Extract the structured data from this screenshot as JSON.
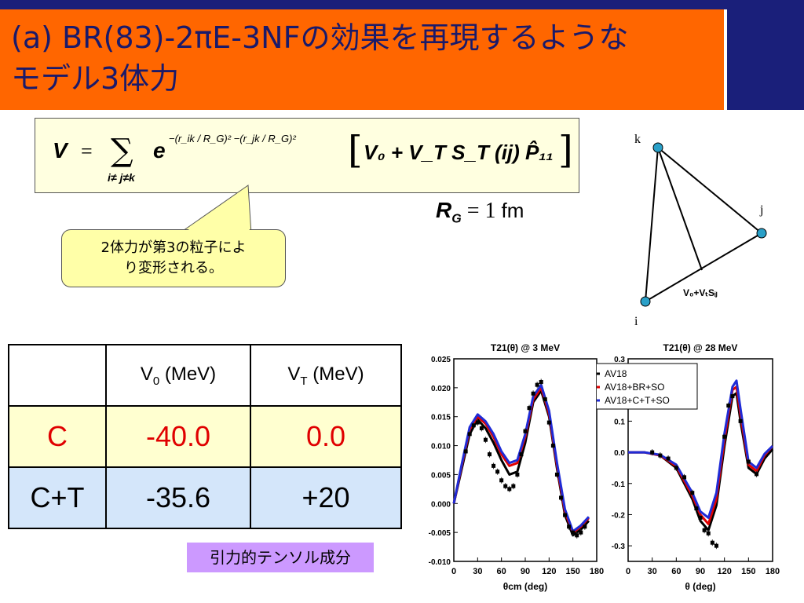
{
  "title": {
    "line1": "(a) BR(83)-2πE-3NFの効果を再現するような",
    "line2": "モデル3体力"
  },
  "formula": {
    "lhs": "V",
    "eq": "=",
    "sum_sub": "i≠ j≠k",
    "exp_base": "e",
    "exponent": "−(r_ik / R_G)² −(r_jk / R_G)²",
    "bracket_terms": "V₀ + V_T S_T (ij) P̂₁₁"
  },
  "rg_line": {
    "symbol": "R",
    "sub": "G",
    "eq": "= 1",
    "unit": "fm"
  },
  "callout": {
    "line1": "2体力が第3の粒子によ",
    "line2": "り変形される。"
  },
  "triangle": {
    "vertex_k": "k",
    "vertex_j": "j",
    "vertex_i": "i",
    "label": "V₀+VₜSᵢⱼ",
    "node_color": "#2aa0c8"
  },
  "table": {
    "headers": [
      "",
      "V0 (MeV)",
      "VT (MeV)"
    ],
    "rows": [
      {
        "name": "C",
        "v0": "-40.0",
        "vt": "0.0"
      },
      {
        "name": "C+T",
        "v0": "-35.6",
        "vt": "+20"
      }
    ]
  },
  "tensor_label": "引力的テンソル成分",
  "colors": {
    "title_band": "#ff6600",
    "title_text": "#1a1a6a",
    "accent_blue": "#1a1f7a",
    "c_row": "#ffffd0",
    "ct_row": "#d4e6fa",
    "tensor_label_bg": "#cc99ff"
  },
  "chart_data": [
    {
      "type": "line",
      "title": "T21(θ) @ 3 MeV",
      "xlabel": "θcm (deg)",
      "ylabel": "",
      "xlim": [
        0,
        180
      ],
      "ylim": [
        -0.01,
        0.025
      ],
      "xticks": [
        "0",
        "30",
        "60",
        "90",
        "120",
        "150",
        "180"
      ],
      "yticks": [
        "0.025",
        "0.020",
        "0.015",
        "0.010",
        "0.005",
        "0.000",
        "-0.005",
        "-0.010"
      ],
      "x": [
        0,
        10,
        20,
        30,
        40,
        50,
        60,
        70,
        80,
        90,
        100,
        110,
        120,
        130,
        140,
        150,
        160,
        170
      ],
      "series": [
        {
          "name": "AV18",
          "color": "#000000",
          "values": [
            0.0,
            0.006,
            0.012,
            0.0145,
            0.013,
            0.0105,
            0.0075,
            0.005,
            0.0055,
            0.0105,
            0.0175,
            0.0195,
            0.015,
            0.006,
            -0.002,
            -0.0055,
            -0.0045,
            -0.003
          ]
        },
        {
          "name": "AV18+BR+SO",
          "color": "#e00000",
          "values": [
            0.0,
            0.0065,
            0.0128,
            0.015,
            0.0138,
            0.0115,
            0.0085,
            0.0065,
            0.007,
            0.0115,
            0.018,
            0.02,
            0.0155,
            0.0065,
            -0.0015,
            -0.005,
            -0.004,
            -0.0025
          ]
        },
        {
          "name": "AV18+C+T+SO",
          "color": "#1f2bd6",
          "values": [
            0.0,
            0.0068,
            0.0132,
            0.0154,
            0.0142,
            0.012,
            0.009,
            0.007,
            0.0075,
            0.012,
            0.0185,
            0.0205,
            0.016,
            0.007,
            -0.001,
            -0.0048,
            -0.0038,
            -0.0023
          ]
        }
      ],
      "data_points": {
        "x": [
          15,
          20,
          25,
          30,
          35,
          40,
          45,
          50,
          55,
          60,
          65,
          70,
          75,
          80,
          85,
          90,
          95,
          100,
          105,
          110,
          115,
          120,
          125,
          130,
          135,
          140,
          145,
          150,
          155,
          160,
          165
        ],
        "y": [
          0.009,
          0.012,
          0.0135,
          0.014,
          0.013,
          0.011,
          0.0085,
          0.0065,
          0.0055,
          0.004,
          0.003,
          0.0025,
          0.003,
          0.005,
          0.0085,
          0.0125,
          0.0165,
          0.019,
          0.0205,
          0.021,
          0.018,
          0.014,
          0.01,
          0.005,
          0.001,
          -0.002,
          -0.004,
          -0.005,
          -0.0055,
          -0.005,
          -0.004
        ]
      }
    },
    {
      "type": "line",
      "title": "T21(θ) @ 28 MeV",
      "xlabel": "θ (deg)",
      "ylabel": "",
      "xlim": [
        0,
        180
      ],
      "ylim": [
        -0.35,
        0.3
      ],
      "xticks": [
        "0",
        "30",
        "60",
        "90",
        "120",
        "150",
        "180"
      ],
      "yticks": [
        "0.3",
        "0.1",
        "0.0",
        "-0.1",
        "-0.2",
        "-0.3"
      ],
      "legend": [
        "AV18",
        "AV18+BR+SO",
        "AV18+C+T+SO"
      ],
      "legend_position": "top-left",
      "x": [
        0,
        20,
        40,
        60,
        80,
        90,
        100,
        110,
        120,
        130,
        135,
        140,
        150,
        160,
        170,
        180
      ],
      "series": [
        {
          "name": "AV18",
          "color": "#000000",
          "values": [
            0.0,
            0.0,
            -0.01,
            -0.05,
            -0.15,
            -0.22,
            -0.25,
            -0.17,
            0.02,
            0.18,
            0.19,
            0.1,
            -0.05,
            -0.07,
            -0.02,
            0.01
          ]
        },
        {
          "name": "AV18+BR+SO",
          "color": "#e00000",
          "values": [
            0.0,
            0.0,
            -0.01,
            -0.045,
            -0.14,
            -0.2,
            -0.23,
            -0.15,
            0.04,
            0.2,
            0.21,
            0.12,
            -0.04,
            -0.06,
            -0.01,
            0.02
          ]
        },
        {
          "name": "AV18+C+T+SO",
          "color": "#1f2bd6",
          "values": [
            0.0,
            0.0,
            -0.008,
            -0.04,
            -0.13,
            -0.19,
            -0.21,
            -0.13,
            0.06,
            0.21,
            0.23,
            0.14,
            -0.03,
            -0.05,
            -0.005,
            0.02
          ]
        }
      ],
      "data_points": {
        "x": [
          30,
          40,
          50,
          60,
          70,
          80,
          85,
          90,
          95,
          100,
          105,
          110,
          120,
          125,
          130,
          140,
          150,
          160
        ],
        "y": [
          0.0,
          -0.01,
          -0.02,
          -0.05,
          -0.08,
          -0.13,
          -0.18,
          -0.21,
          -0.25,
          -0.26,
          -0.29,
          -0.3,
          0.05,
          0.15,
          0.18,
          0.1,
          -0.03,
          -0.07
        ]
      }
    }
  ]
}
